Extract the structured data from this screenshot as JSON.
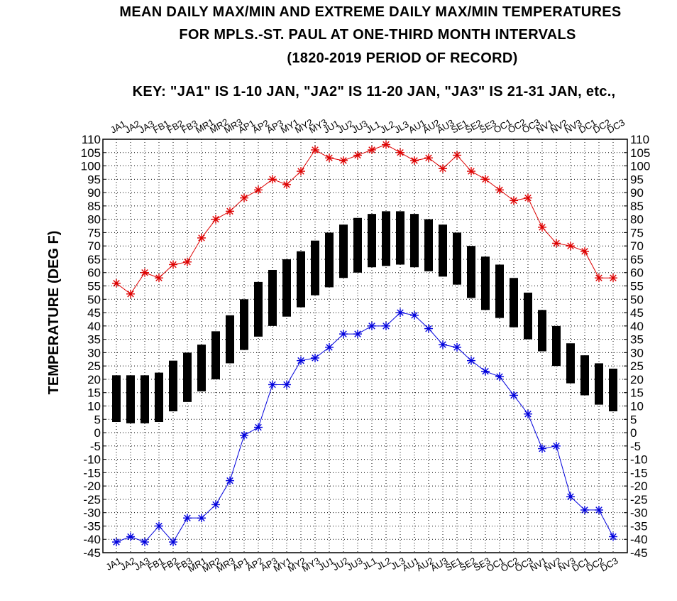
{
  "chart_data": {
    "type": "bar",
    "title": "MEAN DAILY MAX/MIN AND EXTREME DAILY MAX/MIN TEMPERATURES",
    "subtitle": "FOR MPLS.-ST. PAUL AT ONE-THIRD MONTH INTERVALS",
    "period": "(1820-2019 PERIOD OF RECORD)",
    "key": "KEY: \"JA1\" IS 1-10 JAN, \"JA2\" IS 11-20 JAN, \"JA3\" IS 21-31 JAN, etc.,",
    "ylabel": "TEMPERATURE (DEG F)",
    "xlabel": "",
    "ylim": [
      -45,
      110
    ],
    "ytick_step": 5,
    "grid": true,
    "categories": [
      "JA1",
      "JA2",
      "JA3",
      "FB1",
      "FB2",
      "FB3",
      "MR1",
      "MR2",
      "MR3",
      "AP1",
      "AP2",
      "AP3",
      "MY1",
      "MY2",
      "MY3",
      "JU1",
      "JU2",
      "JU3",
      "JL1",
      "JL2",
      "JL3",
      "AU1",
      "AU2",
      "AU3",
      "SE1",
      "SE2",
      "SE3",
      "OC1",
      "OC2",
      "OC3",
      "NV1",
      "NV2",
      "NV3",
      "DC1",
      "DC2",
      "DC3"
    ],
    "series": [
      {
        "name": "Mean daily max",
        "color": "#000000",
        "values": [
          21.5,
          21.5,
          21.5,
          22.5,
          27,
          30,
          33,
          38,
          44,
          50,
          56.5,
          61,
          65,
          68,
          72,
          75,
          78,
          80.5,
          82,
          83,
          83,
          82,
          80,
          78,
          75,
          70,
          66,
          63,
          58,
          52.5,
          46,
          40,
          33.5,
          29,
          26,
          24
        ]
      },
      {
        "name": "Mean daily min",
        "color": "#000000",
        "values": [
          4,
          3.5,
          3.5,
          4,
          8,
          11.5,
          15.5,
          20,
          26,
          31,
          36,
          40,
          43.5,
          47,
          51.5,
          54.5,
          58,
          60,
          62,
          62.5,
          63,
          62,
          60.5,
          58.5,
          55.5,
          50.5,
          46,
          43,
          39.5,
          35,
          30.5,
          25,
          18.5,
          14,
          10.5,
          8
        ]
      },
      {
        "name": "Extreme daily max",
        "color": "#dd0000",
        "values": [
          56,
          52,
          60,
          58,
          63,
          64,
          73,
          80,
          83,
          88,
          91,
          95,
          93,
          98,
          106,
          103,
          102,
          104,
          106,
          108,
          105,
          102,
          103,
          99,
          104,
          98,
          95,
          91,
          87,
          88,
          77,
          71,
          70,
          68,
          58,
          58
        ]
      },
      {
        "name": "Extreme daily min",
        "color": "#0000dd",
        "values": [
          -41,
          -39,
          -41,
          -35,
          -41,
          -32,
          -32,
          -27,
          -18,
          -1,
          2,
          18,
          18,
          27,
          28,
          32,
          37,
          37,
          40,
          40,
          45,
          44,
          39,
          33,
          32,
          27,
          23,
          21,
          14,
          7,
          -6,
          -5,
          -24,
          -29,
          -29,
          -39
        ]
      }
    ]
  }
}
